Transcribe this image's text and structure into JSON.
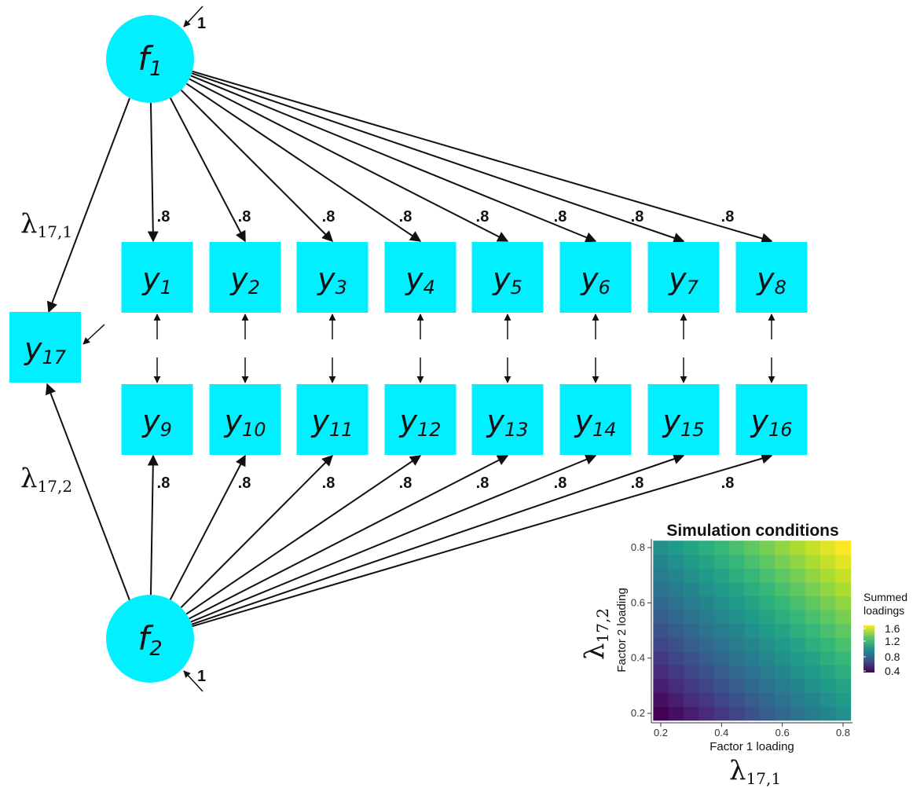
{
  "diagram": {
    "factors": [
      {
        "base": "f",
        "sub": "1"
      },
      {
        "base": "f",
        "sub": "2"
      }
    ],
    "factor_variance_label": "1",
    "top_indicators": [
      {
        "base": "y",
        "sub": "1"
      },
      {
        "base": "y",
        "sub": "2"
      },
      {
        "base": "y",
        "sub": "3"
      },
      {
        "base": "y",
        "sub": "4"
      },
      {
        "base": "y",
        "sub": "5"
      },
      {
        "base": "y",
        "sub": "6"
      },
      {
        "base": "y",
        "sub": "7"
      },
      {
        "base": "y",
        "sub": "8"
      }
    ],
    "bottom_indicators": [
      {
        "base": "y",
        "sub": "9"
      },
      {
        "base": "y",
        "sub": "10"
      },
      {
        "base": "y",
        "sub": "11"
      },
      {
        "base": "y",
        "sub": "12"
      },
      {
        "base": "y",
        "sub": "13"
      },
      {
        "base": "y",
        "sub": "14"
      },
      {
        "base": "y",
        "sub": "15"
      },
      {
        "base": "y",
        "sub": "16"
      }
    ],
    "cross_indicator": {
      "base": "y",
      "sub": "17"
    },
    "loading_label": ".8",
    "lambda_f1": {
      "symbol": "λ",
      "sub": "17,1"
    },
    "lambda_f2": {
      "symbol": "λ",
      "sub": "17,2"
    },
    "node_color": "#00F0FF"
  },
  "inset": {
    "title": "Simulation conditions",
    "x_axis_title": "Factor 1 loading",
    "y_axis_title": "Factor 2 loading",
    "outer_x_label": {
      "symbol": "λ",
      "sub": "17,1"
    },
    "outer_y_label": {
      "symbol": "λ",
      "sub": "17,2"
    },
    "legend_title_line1": "Summed",
    "legend_title_line2": "loadings",
    "legend_ticks": [
      "1.6",
      "1.2",
      "0.8",
      "0.4"
    ],
    "x_ticks": [
      "0.2",
      "0.4",
      "0.6",
      "0.8"
    ],
    "y_ticks": [
      "0.8",
      "0.6",
      "0.4",
      "0.2"
    ]
  },
  "chart_data": {
    "type": "heatmap",
    "title": "Simulation conditions",
    "xlabel": "Factor 1 loading",
    "ylabel": "Factor 2 loading",
    "x": [
      0.2,
      0.25,
      0.3,
      0.35,
      0.4,
      0.45,
      0.5,
      0.55,
      0.6,
      0.65,
      0.7,
      0.75,
      0.8
    ],
    "y": [
      0.2,
      0.25,
      0.3,
      0.35,
      0.4,
      0.45,
      0.5,
      0.55,
      0.6,
      0.65,
      0.7,
      0.75,
      0.8
    ],
    "value": "x + y (summed loadings)",
    "xlim": [
      0.2,
      0.8
    ],
    "ylim": [
      0.2,
      0.8
    ],
    "color_range": [
      0.4,
      1.6
    ],
    "colorscale": "viridis",
    "legend_position": "right"
  }
}
